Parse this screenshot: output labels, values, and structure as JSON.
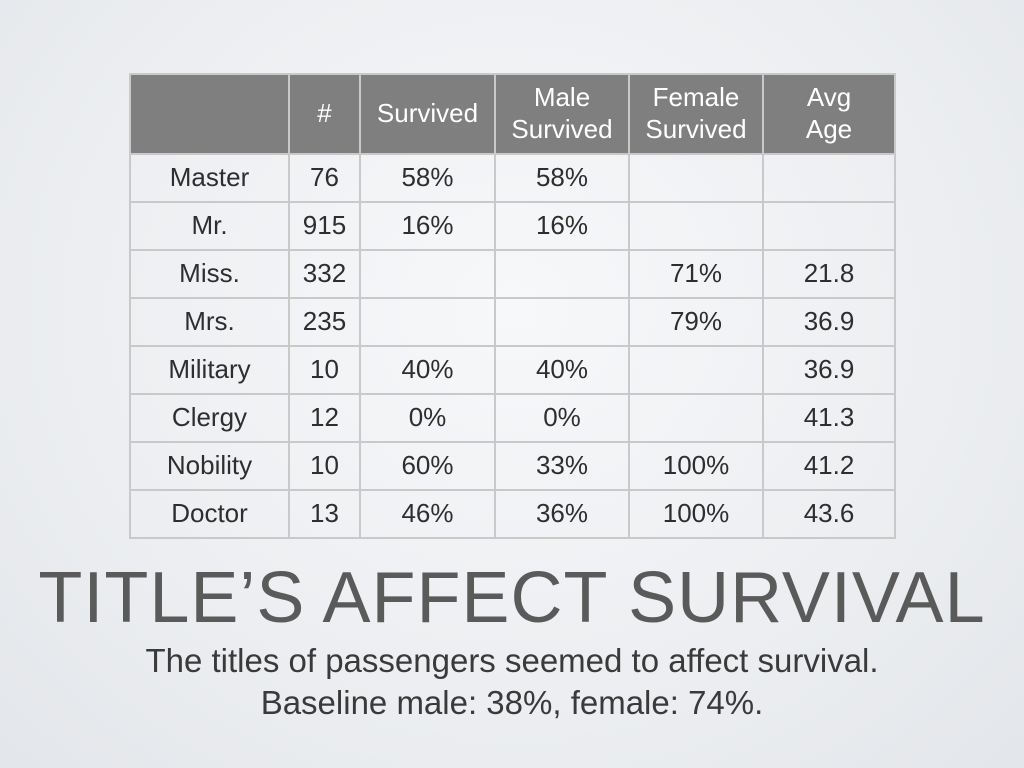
{
  "table": {
    "headers": [
      {
        "lines": [
          ""
        ]
      },
      {
        "lines": [
          "#"
        ]
      },
      {
        "lines": [
          "Survived"
        ]
      },
      {
        "lines": [
          "Male",
          "Survived"
        ]
      },
      {
        "lines": [
          "Female",
          "Survived"
        ]
      },
      {
        "lines": [
          "Avg",
          "Age"
        ]
      }
    ],
    "rows": [
      [
        "Master",
        "76",
        "58%",
        "58%",
        "",
        ""
      ],
      [
        "Mr.",
        "915",
        "16%",
        "16%",
        "",
        ""
      ],
      [
        "Miss.",
        "332",
        "",
        "",
        "71%",
        "21.8"
      ],
      [
        "Mrs.",
        "235",
        "",
        "",
        "79%",
        "36.9"
      ],
      [
        "Military",
        "10",
        "40%",
        "40%",
        "",
        "36.9"
      ],
      [
        "Clergy",
        "12",
        "0%",
        "0%",
        "",
        "41.3"
      ],
      [
        "Nobility",
        "10",
        "60%",
        "33%",
        "100%",
        "41.2"
      ],
      [
        "Doctor",
        "13",
        "46%",
        "36%",
        "100%",
        "43.6"
      ]
    ]
  },
  "title": "TITLE’S AFFECT SURVIVAL",
  "subtitle": {
    "line1": "The titles of passengers seemed to affect survival.",
    "line2": "Baseline male: 38%, female: 74%."
  },
  "colors": {
    "header_bg": "#7f7f7f",
    "grid": "#c9c9c9"
  }
}
